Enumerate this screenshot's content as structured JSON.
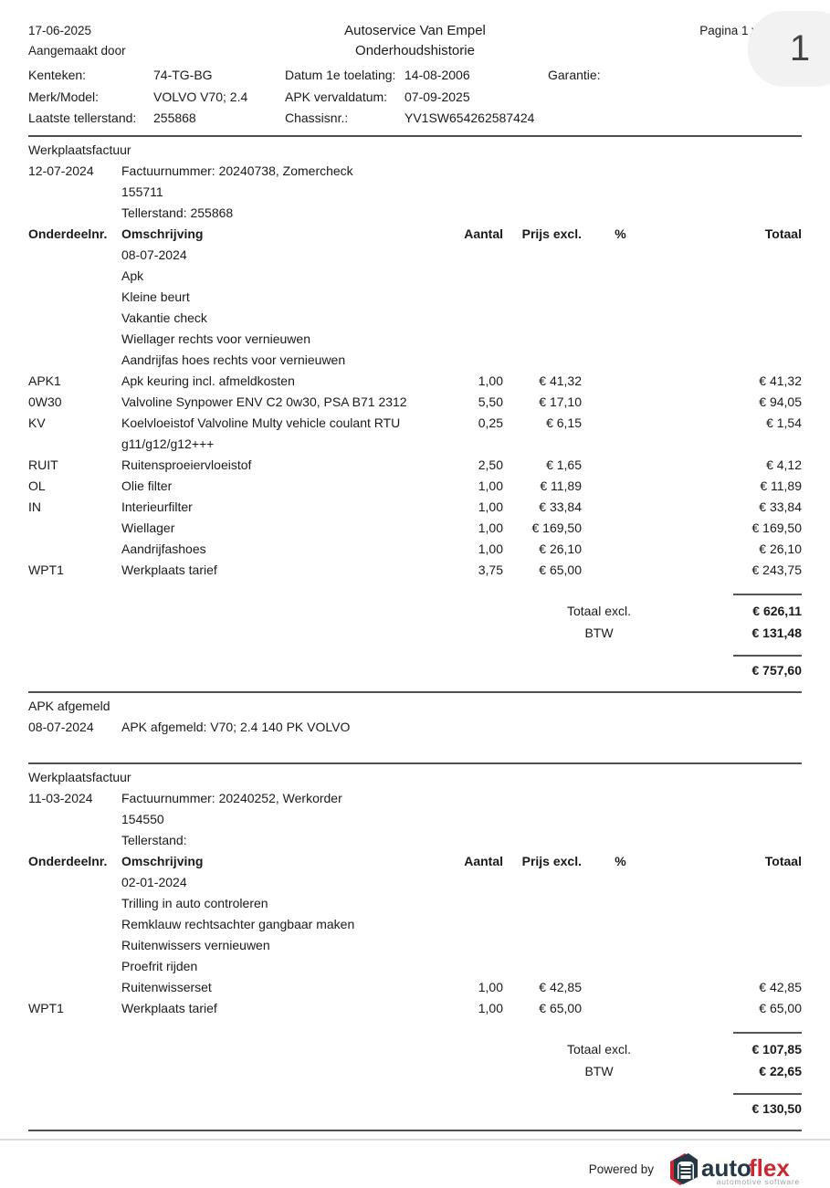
{
  "colors": {
    "text": "#1a1a1a",
    "rule_dark": "#4f4f4f",
    "rule_light": "#dcdcdc",
    "badge_bg": "#f2f2f3",
    "brand_navy": "#243746",
    "brand_red": "#cc2630",
    "brand_gray": "#9aa0a6"
  },
  "header": {
    "date": "17-06-2025",
    "created_by": "Aangemaakt door",
    "company": "Autoservice Van Empel",
    "title": "Onderhoudshistorie",
    "page_label": "Pagina 1 v",
    "page_number": "1"
  },
  "vehicle": {
    "rows": [
      {
        "l1": "Kenteken:",
        "v1": "74-TG-BG",
        "l2": "Datum 1e toelating:",
        "v2": "14-08-2006",
        "l3": "Garantie:"
      },
      {
        "l1": "Merk/Model:",
        "v1": "VOLVO V70; 2.4",
        "l2": "APK vervaldatum:",
        "v2": "07-09-2025",
        "l3": ""
      },
      {
        "l1": "Laatste tellerstand:",
        "v1": "255868",
        "l2": "Chassisnr.:",
        "v2": "YV1SW654262587424",
        "l3": ""
      }
    ]
  },
  "table_columns": {
    "code": "Onderdeelnr.",
    "desc": "Omschrijving",
    "qty": "Aantal",
    "price": "Prijs excl.",
    "pct": "%",
    "total": "Totaal"
  },
  "sections": [
    {
      "type": "invoice",
      "title": "Werkplaatsfactuur",
      "date": "12-07-2024",
      "reference": "Factuurnummer: 20240738, Zomercheck",
      "number": "155711",
      "odometer": "Tellerstand: 255868",
      "rows": [
        {
          "code": "",
          "desc": "08-07-2024",
          "qty": "",
          "price": "",
          "pct": "",
          "total": ""
        },
        {
          "code": "",
          "desc": "Apk",
          "qty": "",
          "price": "",
          "pct": "",
          "total": ""
        },
        {
          "code": "",
          "desc": "Kleine beurt",
          "qty": "",
          "price": "",
          "pct": "",
          "total": ""
        },
        {
          "code": "",
          "desc": "Vakantie check",
          "qty": "",
          "price": "",
          "pct": "",
          "total": ""
        },
        {
          "code": "",
          "desc": "Wiellager rechts voor vernieuwen",
          "qty": "",
          "price": "",
          "pct": "",
          "total": ""
        },
        {
          "code": "",
          "desc": "Aandrijfas hoes rechts voor vernieuwen",
          "qty": "",
          "price": "",
          "pct": "",
          "total": ""
        },
        {
          "code": "APK1",
          "desc": "Apk keuring incl. afmeldkosten",
          "qty": "1,00",
          "price": "€ 41,32",
          "pct": "",
          "total": "€ 41,32"
        },
        {
          "code": "0W30",
          "desc": "Valvoline Synpower ENV C2 0w30, PSA B71 2312",
          "qty": "5,50",
          "price": "€ 17,10",
          "pct": "",
          "total": "€ 94,05"
        },
        {
          "code": "KV",
          "desc": "Koelvloeistof Valvoline Multy vehicle coulant RTU g11/g12/g12+++",
          "qty": "0,25",
          "price": "€ 6,15",
          "pct": "",
          "total": "€ 1,54"
        },
        {
          "code": "RUIT",
          "desc": "Ruitensproeiervloeistof",
          "qty": "2,50",
          "price": "€ 1,65",
          "pct": "",
          "total": "€ 4,12"
        },
        {
          "code": "OL",
          "desc": "Olie filter",
          "qty": "1,00",
          "price": "€ 11,89",
          "pct": "",
          "total": "€ 11,89"
        },
        {
          "code": "IN",
          "desc": "Interieurfilter",
          "qty": "1,00",
          "price": "€ 33,84",
          "pct": "",
          "total": "€ 33,84"
        },
        {
          "code": "",
          "desc": "Wiellager",
          "qty": "1,00",
          "price": "€ 169,50",
          "pct": "",
          "total": "€ 169,50"
        },
        {
          "code": "",
          "desc": "Aandrijfashoes",
          "qty": "1,00",
          "price": "€ 26,10",
          "pct": "",
          "total": "€ 26,10"
        },
        {
          "code": "WPT1",
          "desc": "Werkplaats tarief",
          "qty": "3,75",
          "price": "€ 65,00",
          "pct": "",
          "total": "€ 243,75"
        }
      ],
      "totals": {
        "excl_label": "Totaal excl.",
        "excl": "€ 626,11",
        "btw_label": "BTW",
        "btw": "€ 131,48",
        "grand": "€ 757,60"
      }
    },
    {
      "type": "note",
      "title": "APK afgemeld",
      "date": "08-07-2024",
      "text": "APK afgemeld: V70; 2.4 140 PK VOLVO"
    },
    {
      "type": "invoice",
      "title": "Werkplaatsfactuur",
      "date": "11-03-2024",
      "reference": "Factuurnummer: 20240252, Werkorder",
      "number": "154550",
      "odometer": "Tellerstand:",
      "rows": [
        {
          "code": "",
          "desc": "02-01-2024",
          "qty": "",
          "price": "",
          "pct": "",
          "total": ""
        },
        {
          "code": "",
          "desc": "Trilling in auto controleren",
          "qty": "",
          "price": "",
          "pct": "",
          "total": ""
        },
        {
          "code": "",
          "desc": "Remklauw rechtsachter gangbaar maken",
          "qty": "",
          "price": "",
          "pct": "",
          "total": ""
        },
        {
          "code": "",
          "desc": "Ruitenwissers vernieuwen",
          "qty": "",
          "price": "",
          "pct": "",
          "total": ""
        },
        {
          "code": "",
          "desc": "Proefrit rijden",
          "qty": "",
          "price": "",
          "pct": "",
          "total": ""
        },
        {
          "code": "",
          "desc": "Ruitenwisserset",
          "qty": "1,00",
          "price": "€ 42,85",
          "pct": "",
          "total": "€ 42,85"
        },
        {
          "code": "WPT1",
          "desc": "Werkplaats tarief",
          "qty": "1,00",
          "price": "€ 65,00",
          "pct": "",
          "total": "€ 65,00"
        }
      ],
      "totals": {
        "excl_label": "Totaal excl.",
        "excl": "€ 107,85",
        "btw_label": "BTW",
        "btw": "€ 22,65",
        "grand": "€ 130,50"
      }
    }
  ],
  "footer": {
    "powered_by": "Powered by",
    "logo_auto": "auto",
    "logo_flex": "flex",
    "logo_tagline": "automotive software"
  }
}
